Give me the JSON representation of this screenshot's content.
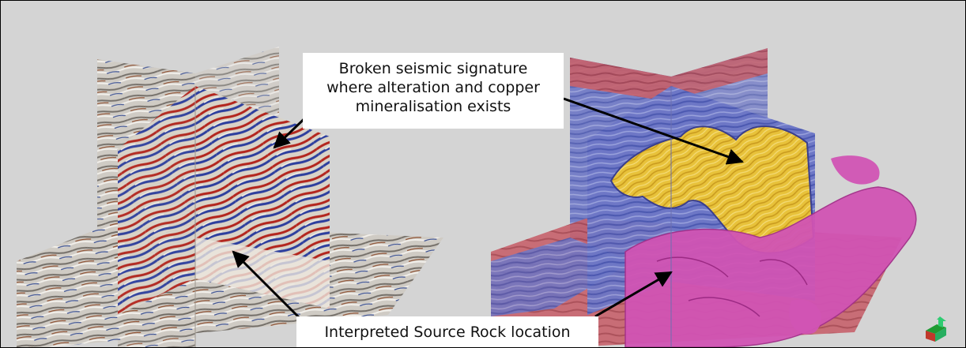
{
  "annotations": {
    "top_callout": {
      "line1": "Broken seismic signature",
      "line2": "where alteration and copper",
      "line3": "mineralisation exists"
    },
    "bottom_callout": {
      "text": "Interpreted Source Rock location"
    }
  },
  "colors": {
    "background": "#d4d4d4",
    "seismic_red": "#b3261e",
    "seismic_blue": "#2d3f9e",
    "attribute_yellow": "#e8c23a",
    "geobody_magenta": "#d154b4",
    "arrow": "#000000"
  },
  "icons": {
    "orientation": "axis-orientation-icon"
  }
}
